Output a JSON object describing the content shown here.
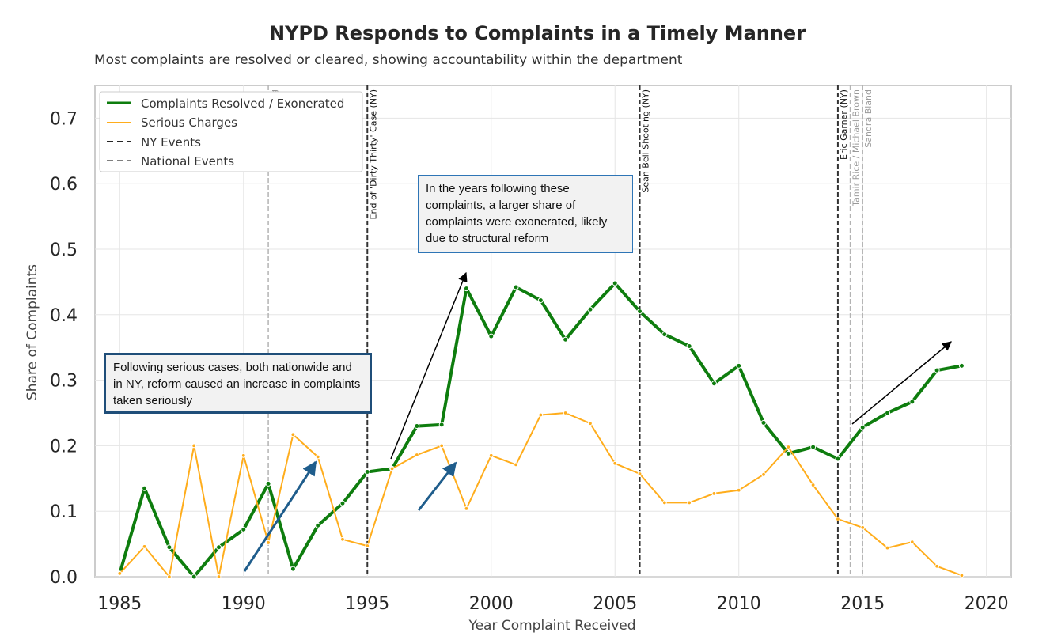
{
  "colors": {
    "resolved": "#0e7d0e",
    "serious": "#ffad1c",
    "ny_event": "#333333",
    "national_event": "#b3b3b3",
    "arrow_blue": "#1f5d8c",
    "arrow_black": "#000000"
  },
  "chart_data": {
    "type": "line",
    "title": "NYPD Responds to Complaints in a Timely Manner",
    "subtitle": "Most complaints are resolved or cleared, showing accountability within the department",
    "xlabel": "Year Complaint Received",
    "ylabel": "Share of Complaints",
    "xlim": [
      1984,
      2021
    ],
    "ylim": [
      0,
      0.75
    ],
    "x_ticks": [
      1985,
      1990,
      1995,
      2000,
      2005,
      2010,
      2015,
      2020
    ],
    "y_ticks": [
      0.0,
      0.1,
      0.2,
      0.3,
      0.4,
      0.5,
      0.6,
      0.7
    ],
    "x_tick_labels": [
      "1985",
      "1990",
      "1995",
      "2000",
      "2005",
      "2010",
      "2015",
      "2020"
    ],
    "y_tick_labels": [
      "0.0",
      "0.1",
      "0.2",
      "0.3",
      "0.4",
      "0.5",
      "0.6",
      "0.7"
    ],
    "grid": true,
    "legend_position": "top-left",
    "x": [
      1985,
      1986,
      1987,
      1988,
      1989,
      1990,
      1991,
      1992,
      1993,
      1994,
      1995,
      1996,
      1997,
      1998,
      1999,
      2000,
      2001,
      2002,
      2003,
      2004,
      2005,
      2006,
      2007,
      2008,
      2009,
      2010,
      2011,
      2012,
      2013,
      2014,
      2015,
      2016,
      2017,
      2018,
      2019
    ],
    "series": [
      {
        "name": "Complaints Resolved / Exonerated",
        "values": [
          0.005,
          0.135,
          0.045,
          0.0,
          0.045,
          0.072,
          0.142,
          0.012,
          0.078,
          0.112,
          0.16,
          0.165,
          0.23,
          0.232,
          0.44,
          0.367,
          0.442,
          0.422,
          0.362,
          0.408,
          0.448,
          0.405,
          0.37,
          0.352,
          0.295,
          0.322,
          0.235,
          0.188,
          0.198,
          0.18,
          0.228,
          0.25,
          0.267,
          0.315,
          0.322
        ]
      },
      {
        "name": "Serious Charges",
        "values": [
          0.005,
          0.046,
          0.0,
          0.2,
          0.0,
          0.185,
          0.052,
          0.217,
          0.183,
          0.057,
          0.047,
          0.165,
          0.186,
          0.2,
          0.104,
          0.185,
          0.171,
          0.247,
          0.25,
          0.234,
          0.173,
          0.157,
          0.113,
          0.113,
          0.127,
          0.132,
          0.156,
          0.198,
          0.14,
          0.088,
          0.075,
          0.044,
          0.053,
          0.016,
          0.002
        ]
      }
    ],
    "legend": [
      {
        "label": "Complaints Resolved / Exonerated",
        "style": "solid",
        "color": "#0e7d0e"
      },
      {
        "label": "Serious Charges",
        "style": "solid",
        "color": "#ffad1c"
      },
      {
        "label": "NY Events",
        "style": "dashed",
        "color": "#262626"
      },
      {
        "label": "National Events",
        "style": "dashed",
        "color": "#7f7f7f"
      }
    ],
    "events": [
      {
        "year": 1991,
        "label": "Rodney King",
        "kind": "national"
      },
      {
        "year": 1995,
        "label": "End of 'Dirty Thirty' Case (NY)",
        "kind": "ny"
      },
      {
        "year": 2006,
        "label": "Sean Bell Shooting (NY)",
        "kind": "ny"
      },
      {
        "year": 2014,
        "label": "Eric Garner (NY)",
        "kind": "ny"
      },
      {
        "year": 2014.5,
        "label": "Tamir Rice / Michael Brown",
        "kind": "national"
      },
      {
        "year": 2015,
        "label": "Sandra Bland",
        "kind": "national"
      }
    ],
    "annotations": [
      "Following serious cases, both nationwide and in NY, reform caused an increase in complaints taken seriously",
      "In the years following these complaints, a larger share of complaints were exonerated, likely due to structural reform"
    ]
  }
}
